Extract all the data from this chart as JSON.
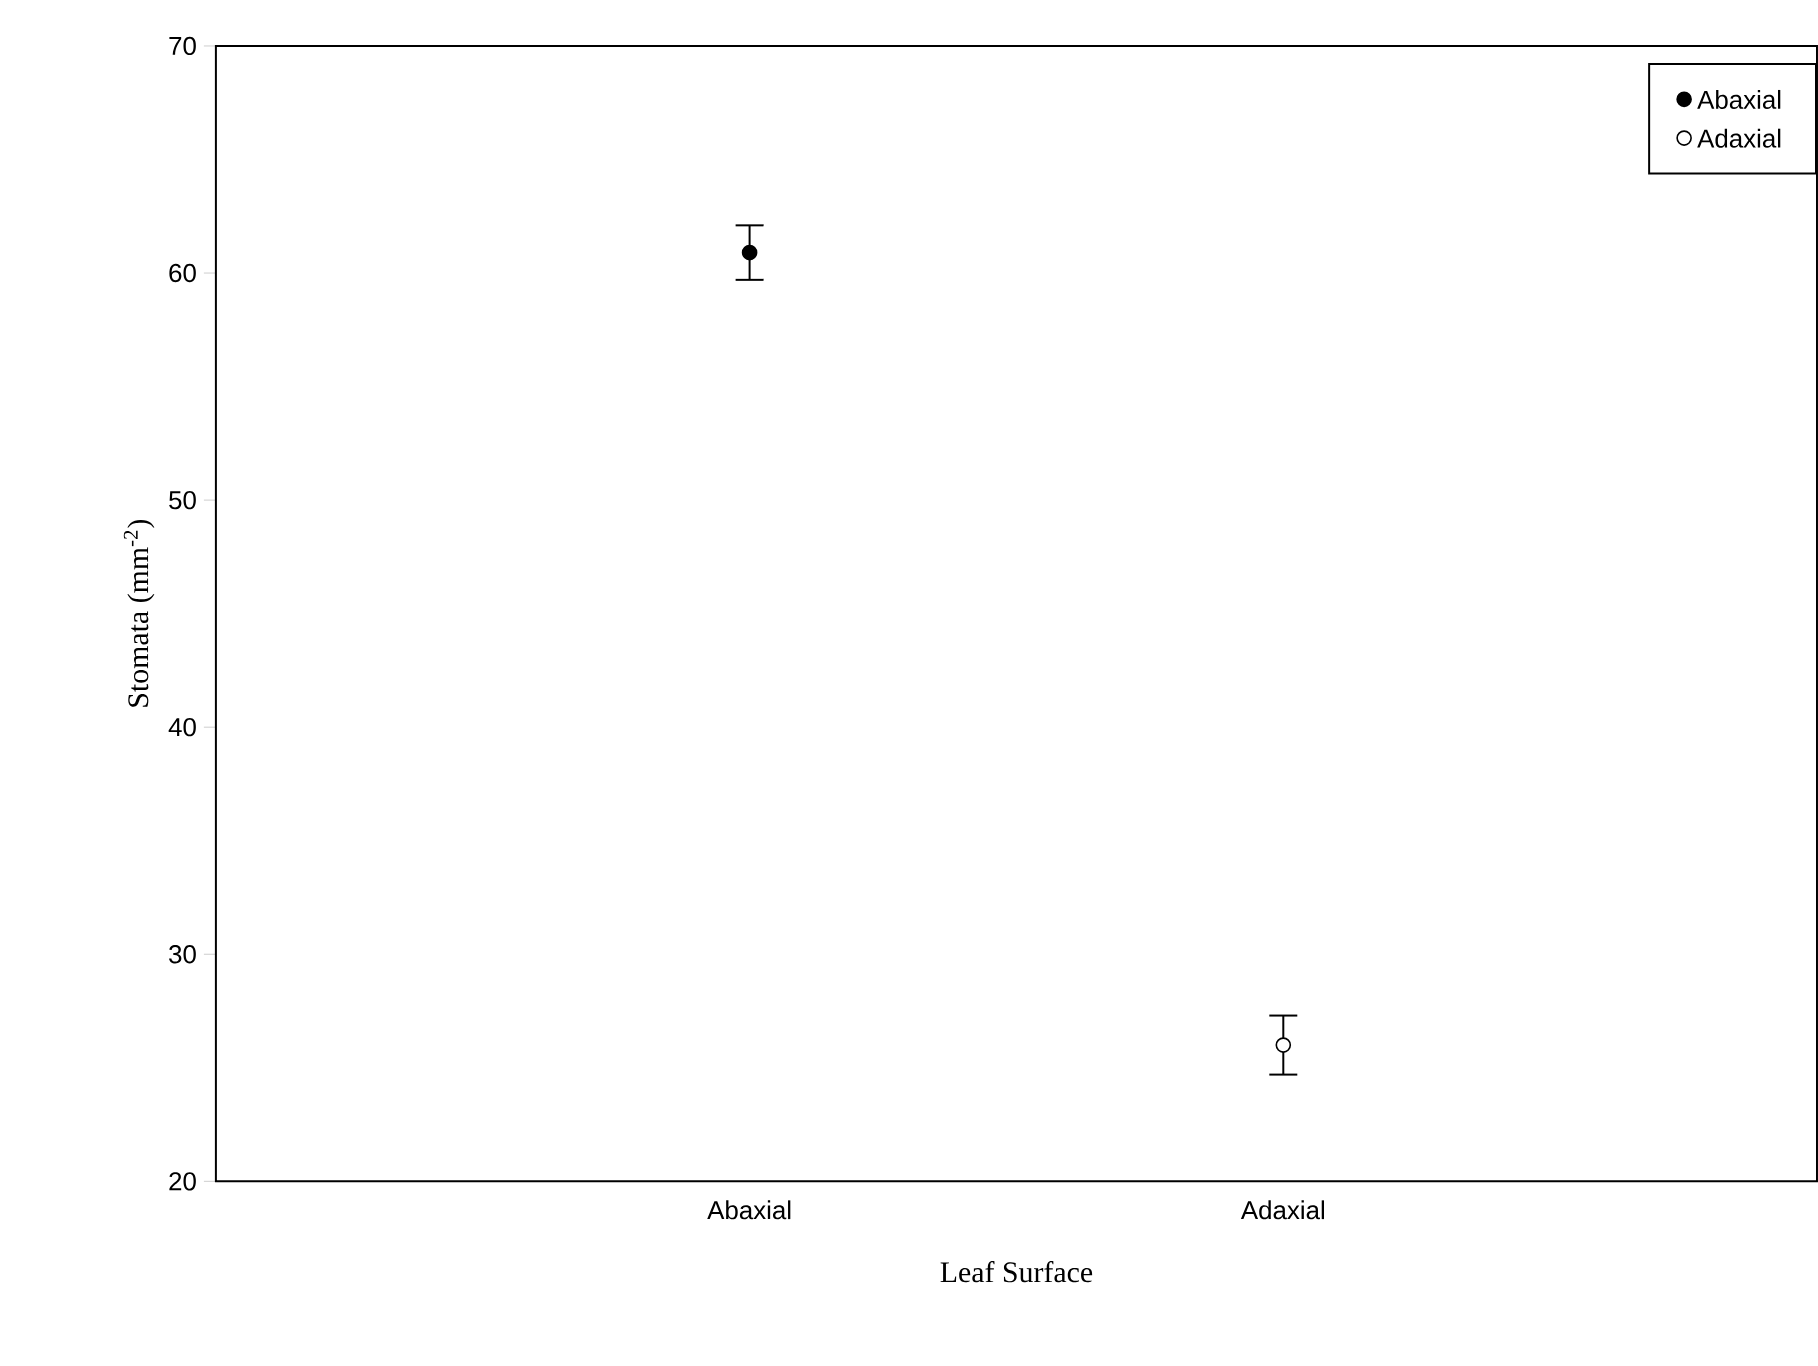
{
  "chart_data": {
    "type": "scatter",
    "categories": [
      "Abaxial",
      "Adaxial"
    ],
    "series": [
      {
        "name": "Abaxial",
        "color": "#000000",
        "values": [
          60.9,
          null
        ],
        "errors": [
          1.2,
          null
        ]
      },
      {
        "name": "Adaxial",
        "color": "#ffffff",
        "values": [
          null,
          26.0
        ],
        "errors": [
          null,
          1.3
        ]
      }
    ],
    "xlabel": "Leaf Surface",
    "ylabel": "Stomata (mm$^{-2}$)",
    "ylim": [
      20,
      70
    ],
    "yticks": [
      20,
      30,
      40,
      50,
      60,
      70
    ],
    "marker": "circle",
    "legend": "top right",
    "grid": false
  }
}
